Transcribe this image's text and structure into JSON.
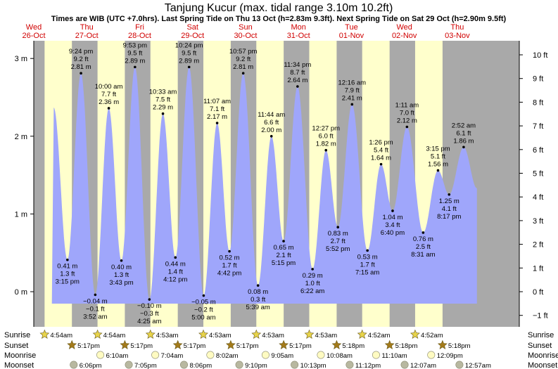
{
  "header": {
    "title": "Tanjung Kucur (max. tidal range 3.10m 10.2ft)",
    "subtitle": "Times are WIB (UTC +7.0hrs). Last Spring Tide on Thu 13 Oct (h=2.83m 9.3ft). Next Spring Tide on Sat 29 Oct (h=2.90m 9.5ft)"
  },
  "chart_data": {
    "type": "area",
    "time_units": "hours since 26-Oct 00:00 (WIB)",
    "days": [
      {
        "day": "Wed",
        "date": "26-Oct"
      },
      {
        "day": "Thu",
        "date": "27-Oct"
      },
      {
        "day": "Fri",
        "date": "28-Oct"
      },
      {
        "day": "Sat",
        "date": "29-Oct"
      },
      {
        "day": "Sun",
        "date": "30-Oct"
      },
      {
        "day": "Mon",
        "date": "31-Oct"
      },
      {
        "day": "Tue",
        "date": "01-Nov"
      },
      {
        "day": "Wed",
        "date": "02-Nov"
      },
      {
        "day": "Thu",
        "date": "03-Nov"
      }
    ],
    "y_left": {
      "unit": "m",
      "range": [
        -0.45,
        3.2
      ],
      "ticks": [
        {
          "v": 0,
          "label": "0 m"
        },
        {
          "v": 1,
          "label": "1 m"
        },
        {
          "v": 2,
          "label": "2 m"
        },
        {
          "v": 3,
          "label": "3 m"
        }
      ]
    },
    "y_right": {
      "unit": "ft",
      "ticks": [
        {
          "v": -1,
          "label": "−1 ft"
        },
        {
          "v": 0,
          "label": "0 ft"
        },
        {
          "v": 1,
          "label": "1 ft"
        },
        {
          "v": 2,
          "label": "2 ft"
        },
        {
          "v": 3,
          "label": "3 ft"
        },
        {
          "v": 4,
          "label": "4 ft"
        },
        {
          "v": 5,
          "label": "5 ft"
        },
        {
          "v": 6,
          "label": "6 ft"
        },
        {
          "v": 7,
          "label": "7 ft"
        },
        {
          "v": 8,
          "label": "8 ft"
        },
        {
          "v": 9,
          "label": "9 ft"
        },
        {
          "v": 10,
          "label": "10 ft"
        }
      ]
    },
    "tides": [
      {
        "time": "3:15 pm",
        "t": 15.25,
        "m": 0.41,
        "m_label": "0.41 m",
        "ft": "1.3 ft",
        "type": "low"
      },
      {
        "time": "9:24 pm",
        "t": 21.4,
        "m": 2.81,
        "m_label": "2.81 m",
        "ft": "9.2 ft",
        "type": "high"
      },
      {
        "time": "3:52 am",
        "t": 27.87,
        "m": -0.04,
        "m_label": "−0.04 m",
        "ft": "−0.1 ft",
        "type": "low"
      },
      {
        "time": "10:00 am",
        "t": 34.0,
        "m": 2.36,
        "m_label": "2.36 m",
        "ft": "7.7 ft",
        "type": "high"
      },
      {
        "time": "3:43 pm",
        "t": 39.72,
        "m": 0.4,
        "m_label": "0.40 m",
        "ft": "1.3 ft",
        "type": "low"
      },
      {
        "time": "9:53 pm",
        "t": 45.88,
        "m": 2.89,
        "m_label": "2.89 m",
        "ft": "9.5 ft",
        "type": "high"
      },
      {
        "time": "4:25 am",
        "t": 52.42,
        "m": -0.1,
        "m_label": "−0.10 m",
        "ft": "−0.3 ft",
        "type": "low"
      },
      {
        "time": "10:33 am",
        "t": 58.55,
        "m": 2.29,
        "m_label": "2.29 m",
        "ft": "7.5 ft",
        "type": "high"
      },
      {
        "time": "4:12 pm",
        "t": 64.2,
        "m": 0.44,
        "m_label": "0.44 m",
        "ft": "1.4 ft",
        "type": "low"
      },
      {
        "time": "10:24 pm",
        "t": 70.4,
        "m": 2.89,
        "m_label": "2.89 m",
        "ft": "9.5 ft",
        "type": "high"
      },
      {
        "time": "5:00 am",
        "t": 77.0,
        "m": -0.05,
        "m_label": "−0.05 m",
        "ft": "−0.2 ft",
        "type": "low"
      },
      {
        "time": "11:07 am",
        "t": 83.12,
        "m": 2.17,
        "m_label": "2.17 m",
        "ft": "7.1 ft",
        "type": "high"
      },
      {
        "time": "4:42 pm",
        "t": 88.7,
        "m": 0.52,
        "m_label": "0.52 m",
        "ft": "1.7 ft",
        "type": "low"
      },
      {
        "time": "10:57 pm",
        "t": 94.95,
        "m": 2.81,
        "m_label": "2.81 m",
        "ft": "9.2 ft",
        "type": "high"
      },
      {
        "time": "5:39 am",
        "t": 101.65,
        "m": 0.08,
        "m_label": "0.08 m",
        "ft": "0.3 ft",
        "type": "low"
      },
      {
        "time": "11:44 am",
        "t": 107.73,
        "m": 2.0,
        "m_label": "2.00 m",
        "ft": "6.6 ft",
        "type": "high"
      },
      {
        "time": "5:15 pm",
        "t": 113.25,
        "m": 0.65,
        "m_label": "0.65 m",
        "ft": "2.1 ft",
        "type": "low"
      },
      {
        "time": "11:34 pm",
        "t": 119.57,
        "m": 2.64,
        "m_label": "2.64 m",
        "ft": "8.7 ft",
        "type": "high"
      },
      {
        "time": "6:22 am",
        "t": 126.37,
        "m": 0.29,
        "m_label": "0.29 m",
        "ft": "1.0 ft",
        "type": "low"
      },
      {
        "time": "12:27 pm",
        "t": 132.45,
        "m": 1.82,
        "m_label": "1.82 m",
        "ft": "6.0 ft",
        "type": "high"
      },
      {
        "time": "5:52 pm",
        "t": 137.87,
        "m": 0.83,
        "m_label": "0.83 m",
        "ft": "2.7 ft",
        "type": "low"
      },
      {
        "time": "12:16 am",
        "t": 144.27,
        "m": 2.41,
        "m_label": "2.41 m",
        "ft": "7.9 ft",
        "type": "high"
      },
      {
        "time": "7:15 am",
        "t": 151.25,
        "m": 0.53,
        "m_label": "0.53 m",
        "ft": "1.7 ft",
        "type": "low"
      },
      {
        "time": "1:26 pm",
        "t": 157.43,
        "m": 1.64,
        "m_label": "1.64 m",
        "ft": "5.4 ft",
        "type": "high"
      },
      {
        "time": "6:40 pm",
        "t": 162.67,
        "m": 1.04,
        "m_label": "1.04 m",
        "ft": "3.4 ft",
        "type": "low"
      },
      {
        "time": "1:11 am",
        "t": 169.18,
        "m": 2.12,
        "m_label": "2.12 m",
        "ft": "7.0 ft",
        "type": "high"
      },
      {
        "time": "8:31 am",
        "t": 176.52,
        "m": 0.76,
        "m_label": "0.76 m",
        "ft": "2.5 ft",
        "type": "low"
      },
      {
        "time": "3:15 pm",
        "t": 183.25,
        "m": 1.56,
        "m_label": "1.56 m",
        "ft": "5.1 ft",
        "type": "high"
      },
      {
        "time": "8:17 pm",
        "t": 188.28,
        "m": 1.25,
        "m_label": "1.25 m",
        "ft": "4.1 ft",
        "type": "low"
      },
      {
        "time": "2:52 am",
        "t": 194.87,
        "m": 1.86,
        "m_label": "1.86 m",
        "ft": "6.1 ft",
        "type": "high"
      }
    ],
    "sunrise": [
      {
        "t": 4.9,
        "label": "4:54am"
      },
      {
        "t": 28.9,
        "label": "4:54am"
      },
      {
        "t": 52.88,
        "label": "4:53am"
      },
      {
        "t": 76.88,
        "label": "4:53am"
      },
      {
        "t": 100.88,
        "label": "4:53am"
      },
      {
        "t": 124.88,
        "label": "4:53am"
      },
      {
        "t": 148.87,
        "label": "4:52am"
      },
      {
        "t": 172.87,
        "label": "4:52am"
      }
    ],
    "sunset": [
      {
        "t": 17.28,
        "label": "5:17pm"
      },
      {
        "t": 41.28,
        "label": "5:17pm"
      },
      {
        "t": 65.28,
        "label": "5:17pm"
      },
      {
        "t": 89.28,
        "label": "5:17pm"
      },
      {
        "t": 113.28,
        "label": "5:17pm"
      },
      {
        "t": 137.3,
        "label": "5:18pm"
      },
      {
        "t": 161.3,
        "label": "5:18pm"
      },
      {
        "t": 185.3,
        "label": "5:18pm"
      }
    ],
    "moonrise": [
      {
        "t": 30.17,
        "label": "6:10am"
      },
      {
        "t": 55.07,
        "label": "7:04am"
      },
      {
        "t": 80.03,
        "label": "8:02am"
      },
      {
        "t": 105.08,
        "label": "9:05am"
      },
      {
        "t": 130.13,
        "label": "10:08am"
      },
      {
        "t": 155.17,
        "label": "11:10am"
      },
      {
        "t": 180.15,
        "label": "12:09pm"
      }
    ],
    "moonset": [
      {
        "t": 18.1,
        "label": "6:06pm"
      },
      {
        "t": 43.08,
        "label": "7:05pm"
      },
      {
        "t": 68.1,
        "label": "8:06pm"
      },
      {
        "t": 93.17,
        "label": "9:10pm"
      },
      {
        "t": 118.22,
        "label": "10:13pm"
      },
      {
        "t": 143.2,
        "label": "11:12pm"
      },
      {
        "t": 168.12,
        "label": "12:07am"
      },
      {
        "t": 192.95,
        "label": "12:57am"
      }
    ],
    "row_labels": {
      "sunrise": "Sunrise",
      "sunset": "Sunset",
      "moonrise": "Moonrise",
      "moonset": "Moonset"
    },
    "colors": {
      "day": "#ffffcc",
      "night": "#a9a9a9",
      "water": "#9fa6fb",
      "day_label": "#d00000"
    }
  }
}
